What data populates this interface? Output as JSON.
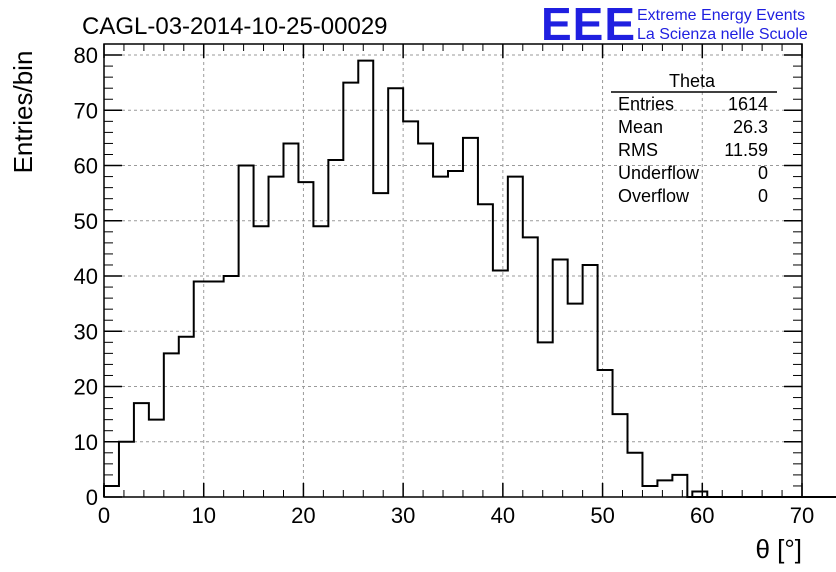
{
  "branding": {
    "logo_text": "EEE",
    "line1": "Extreme Energy Events",
    "line2": "La Scienza nelle Scuole",
    "color": "#1f1fe0"
  },
  "chart_data": {
    "type": "histogram",
    "title": "CAGL-03-2014-10-25-00029",
    "xlabel": "θ [°]",
    "ylabel": "Entries/bin",
    "xlim": [
      0,
      70
    ],
    "ylim": [
      0,
      82
    ],
    "x_ticks": [
      0,
      10,
      20,
      30,
      40,
      50,
      60,
      70
    ],
    "y_ticks": [
      0,
      10,
      20,
      30,
      40,
      50,
      60,
      70,
      80
    ],
    "grid": true,
    "bin_width": 1.5,
    "bin_start": 0,
    "values": [
      2,
      10,
      17,
      14,
      26,
      29,
      39,
      39,
      40,
      60,
      49,
      58,
      64,
      57,
      49,
      61,
      75,
      79,
      55,
      74,
      68,
      64,
      58,
      59,
      65,
      53,
      41,
      58,
      47,
      28,
      43,
      35,
      42,
      23,
      15,
      8,
      2,
      3,
      4,
      0,
      0,
      0,
      0,
      0,
      0,
      0,
      0,
      0,
      0,
      0
    ],
    "stats": {
      "name": "Theta",
      "rows": [
        {
          "label": "Entries",
          "value": "1614"
        },
        {
          "label": "Mean",
          "value": "26.3"
        },
        {
          "label": "RMS",
          "value": "11.59"
        },
        {
          "label": "Underflow",
          "value": "0"
        },
        {
          "label": "Overflow",
          "value": "0"
        }
      ]
    }
  }
}
